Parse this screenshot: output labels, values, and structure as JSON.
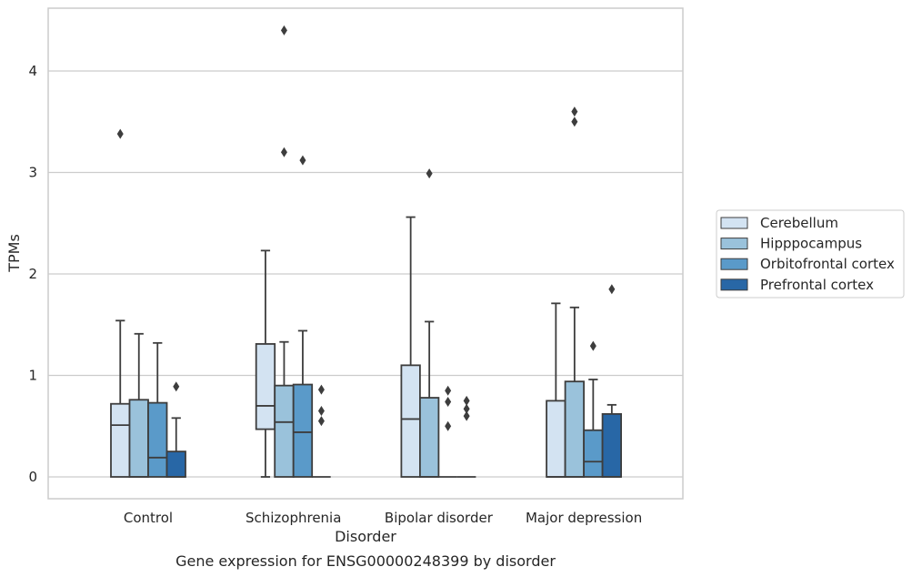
{
  "chart_data": {
    "type": "box",
    "title": "",
    "caption": "Gene expression for ENSG00000248399 by disorder",
    "xlabel": "Disorder",
    "ylabel": "TPMs",
    "ylim": [
      -0.21,
      4.62
    ],
    "yticks": [
      "0",
      "1",
      "2",
      "3",
      "4"
    ],
    "grid": true,
    "legend_position": "right",
    "categories": [
      "Control",
      "Schizophrenia",
      "Bipolar disorder",
      "Major depression"
    ],
    "series": [
      {
        "name": "Cerebellum",
        "color": "#d3e3f2",
        "boxes": [
          {
            "whisker_low": 0,
            "q1": 0,
            "median": 0.51,
            "q3": 0.72,
            "whisker_high": 1.54,
            "outliers": [
              3.38
            ]
          },
          {
            "whisker_low": 0,
            "q1": 0.47,
            "median": 0.7,
            "q3": 1.31,
            "whisker_high": 2.23,
            "outliers": []
          },
          {
            "whisker_low": 0,
            "q1": 0,
            "median": 0.57,
            "q3": 1.1,
            "whisker_high": 2.56,
            "outliers": []
          },
          {
            "whisker_low": 0,
            "q1": 0,
            "median": 0,
            "q3": 0.75,
            "whisker_high": 1.71,
            "outliers": []
          }
        ]
      },
      {
        "name": "Hipppocampus",
        "color": "#9ac2db",
        "boxes": [
          {
            "whisker_low": 0,
            "q1": 0,
            "median": 0,
            "q3": 0.76,
            "whisker_high": 1.41,
            "outliers": []
          },
          {
            "whisker_low": 0,
            "q1": 0,
            "median": 0.54,
            "q3": 0.9,
            "whisker_high": 1.33,
            "outliers": [
              3.2,
              4.4
            ]
          },
          {
            "whisker_low": 0,
            "q1": 0,
            "median": 0,
            "q3": 0.78,
            "whisker_high": 1.53,
            "outliers": [
              2.99
            ]
          },
          {
            "whisker_low": 0,
            "q1": 0,
            "median": 0,
            "q3": 0.94,
            "whisker_high": 1.67,
            "outliers": [
              3.5,
              3.6
            ]
          }
        ]
      },
      {
        "name": "Orbitofrontal cortex",
        "color": "#5a9ac9",
        "boxes": [
          {
            "whisker_low": 0,
            "q1": 0,
            "median": 0.19,
            "q3": 0.73,
            "whisker_high": 1.32,
            "outliers": []
          },
          {
            "whisker_low": 0,
            "q1": 0,
            "median": 0.44,
            "q3": 0.91,
            "whisker_high": 1.44,
            "outliers": [
              3.12
            ]
          },
          {
            "whisker_low": 0,
            "q1": 0,
            "median": 0,
            "q3": 0,
            "whisker_high": 0,
            "outliers": [
              0.5,
              0.74,
              0.85
            ]
          },
          {
            "whisker_low": 0,
            "q1": 0,
            "median": 0.15,
            "q3": 0.46,
            "whisker_high": 0.96,
            "outliers": [
              1.29
            ]
          }
        ]
      },
      {
        "name": "Prefrontal cortex",
        "color": "#2867a6",
        "boxes": [
          {
            "whisker_low": 0,
            "q1": 0,
            "median": 0,
            "q3": 0.25,
            "whisker_high": 0.58,
            "outliers": [
              0.89
            ]
          },
          {
            "whisker_low": 0,
            "q1": 0,
            "median": 0,
            "q3": 0,
            "whisker_high": 0,
            "outliers": [
              0.55,
              0.65,
              0.86
            ]
          },
          {
            "whisker_low": 0,
            "q1": 0,
            "median": 0,
            "q3": 0,
            "whisker_high": 0,
            "outliers": [
              0.6,
              0.67,
              0.75
            ]
          },
          {
            "whisker_low": 0,
            "q1": 0,
            "median": 0,
            "q3": 0.62,
            "whisker_high": 0.71,
            "outliers": [
              1.85
            ]
          }
        ]
      }
    ]
  }
}
